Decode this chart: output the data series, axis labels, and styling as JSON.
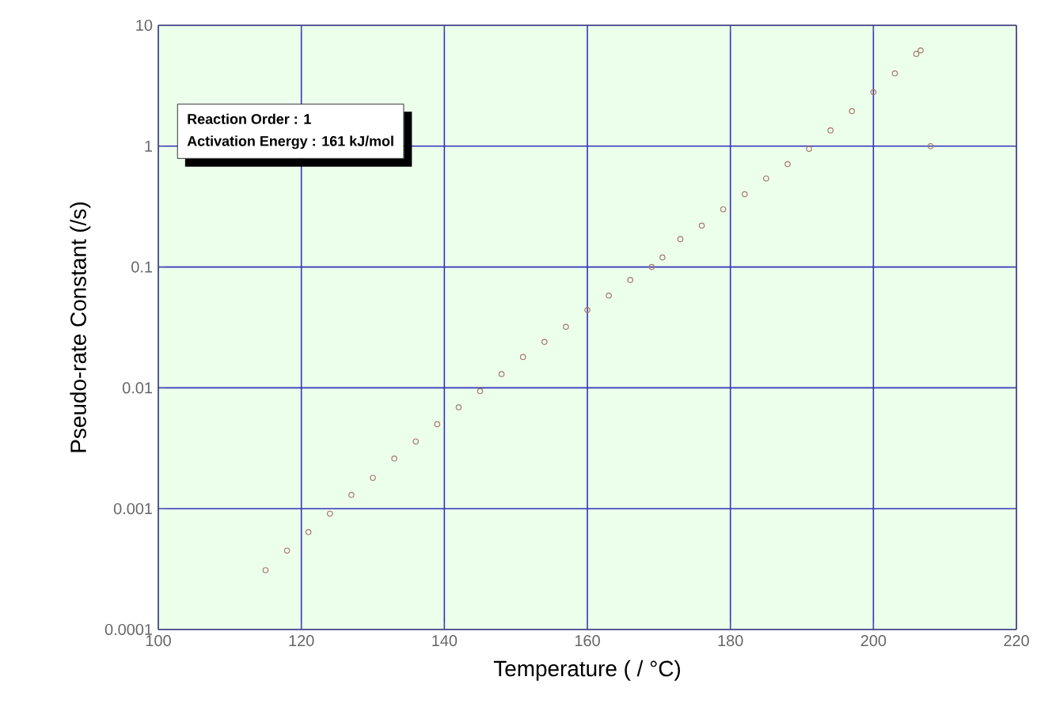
{
  "chart_data": {
    "type": "scatter",
    "xlabel": "Temperature  ( / °C)",
    "ylabel": "Pseudo-rate Constant (/s)",
    "x": [
      115,
      118,
      121,
      124,
      127,
      130,
      133,
      136,
      139,
      142,
      145,
      148,
      151,
      154,
      157,
      160,
      163,
      166,
      169,
      170.5,
      173,
      176,
      179,
      182,
      185,
      188,
      191,
      194,
      197,
      200,
      203,
      206,
      206.6,
      208
    ],
    "values": [
      0.00031,
      0.00045,
      0.00064,
      0.00091,
      0.0013,
      0.0018,
      0.0026,
      0.0036,
      0.005,
      0.0069,
      0.0094,
      0.013,
      0.018,
      0.024,
      0.032,
      0.044,
      0.058,
      0.078,
      0.1,
      0.12,
      0.17,
      0.22,
      0.3,
      0.4,
      0.54,
      0.71,
      0.95,
      1.35,
      1.95,
      2.8,
      4,
      5.8,
      6.2,
      1
    ],
    "color": "#a8786a",
    "marker": "circle",
    "log": "y",
    "grid": true,
    "xlim": [
      100,
      220
    ],
    "xticks": [
      100,
      120,
      140,
      160,
      180,
      200,
      220
    ],
    "ylim": [
      0.0001,
      10
    ],
    "yticks": [
      0.0001,
      0.001,
      0.01,
      0.1,
      1,
      10
    ],
    "annotations": [
      "Reaction Order : 1",
      "Activation Energy : 161 kJ/mol"
    ]
  }
}
